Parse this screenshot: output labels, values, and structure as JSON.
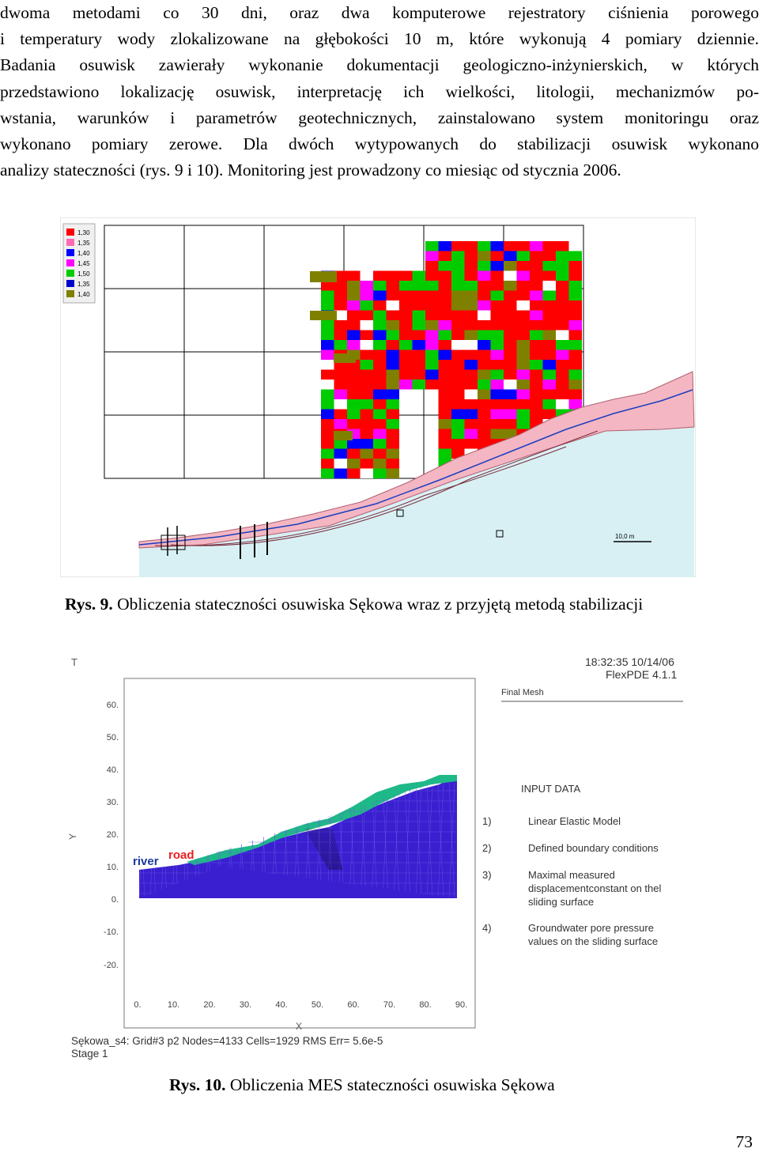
{
  "body_text": {
    "lines": [
      "dwoma metodami co 30 dni, oraz dwa komputerowe rejestratory ciśnienia porowego",
      "i temperatury wody zlokalizowane na głębokości 10 m, które wykonują 4 pomiary dziennie.",
      "Badania osuwisk zawierały wykonanie dokumentacji geologiczno-inżynierskich, w których",
      "przedstawiono lokalizację osuwisk, interpretację ich wielkości, litologii, mechanizmów po-",
      "wstania, warunków i parametrów geotechnicznych, zainstalowano system monitoringu oraz",
      "wykonano pomiary zerowe. Dla dwóch wytypowanych do stabilizacji osuwisk wykonano",
      "analizy stateczności (rys. 9 i 10). Monitoring jest prowadzony co miesiąc od stycznia 2006."
    ]
  },
  "figure9": {
    "legend": {
      "values": [
        "1,30",
        "1,35",
        "1,40",
        "1,45",
        "1,50",
        "1,35",
        "1,40"
      ],
      "colors": [
        "#ff0000",
        "#ff69b4",
        "#0000ff",
        "#ff00ff",
        "#00cc00",
        "#0000cc",
        "#808000"
      ]
    },
    "colors": {
      "red": "#ff0000",
      "green": "#00cc00",
      "blue": "#0000ff",
      "magenta": "#ff00ff",
      "olive": "#808000",
      "pink": "#f4b6c2",
      "water": "#d8f0f4",
      "line": "#1a3fbf"
    },
    "scale_label": "10,0 m",
    "caption_number": "Rys. 9.",
    "caption_text": " Obliczenia stateczności osuwiska Sękowa wraz z przyjętą metodą stabilizacji"
  },
  "figure10": {
    "timestamp": "18:32:35 10/14/06",
    "software": "FlexPDE 4.1.1",
    "mesh_title": "Final Mesh",
    "axis_T": "T",
    "y_label": "Y",
    "x_label": "X",
    "y_ticks": [
      "60.",
      "50.",
      "40.",
      "30.",
      "20.",
      "10.",
      "0.",
      "-10.",
      "-20."
    ],
    "x_ticks": [
      "0.",
      "10.",
      "20.",
      "30.",
      "40.",
      "50.",
      "60.",
      "70.",
      "80.",
      "90."
    ],
    "label_river": "river",
    "label_road": "road",
    "input_title": "INPUT DATA",
    "inputs": [
      {
        "num": "1)",
        "lines": [
          "Linear Elastic Model"
        ]
      },
      {
        "num": "2)",
        "lines": [
          "Defined boundary conditions"
        ]
      },
      {
        "num": "3)",
        "lines": [
          "Maximal measured",
          "displacementconstant on thel",
          "sliding surface"
        ]
      },
      {
        "num": "4)",
        "lines": [
          "Groundwater pore pressure",
          "values on the sliding surface"
        ]
      }
    ],
    "footer_line1": "Sękowa_s4:  Grid#3  p2  Nodes=4133  Cells=1929  RMS Err= 5.6e-5",
    "footer_line2": "Stage 1",
    "colors": {
      "rock": "#3a1fd0",
      "slide": "#1fb888",
      "river": "#1a3aa0",
      "road": "#e82020"
    },
    "caption_number": "Rys. 10.",
    "caption_text": " Obliczenia MES stateczności osuwiska Sękowa"
  },
  "page_number": "73"
}
